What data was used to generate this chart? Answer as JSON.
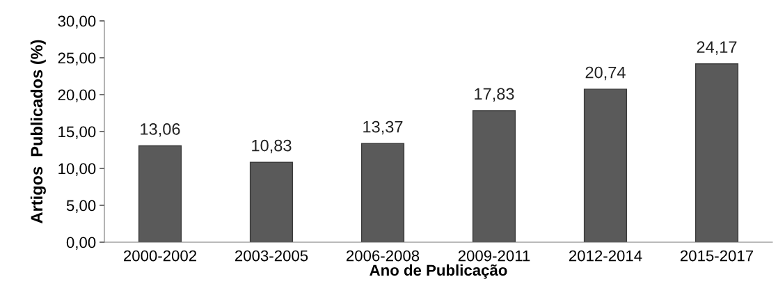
{
  "chart_data": {
    "type": "bar",
    "xlabel": "Ano de Publicação",
    "ylabel": "Artigos  Publicados (%)",
    "categories": [
      "2000-2002",
      "2003-2005",
      "2006-2008",
      "2009-2011",
      "2012-2014",
      "2015-2017"
    ],
    "values": [
      13.06,
      10.83,
      13.37,
      17.83,
      20.74,
      24.17
    ],
    "value_labels": [
      "13,06",
      "10,83",
      "13,37",
      "17,83",
      "20,74",
      "24,17"
    ],
    "color": "#5a5a5a",
    "ylim": [
      0,
      30
    ],
    "yticks": [
      {
        "value": 0,
        "label": "0,00"
      },
      {
        "value": 5,
        "label": "5,00"
      },
      {
        "value": 10,
        "label": "10,00"
      },
      {
        "value": 15,
        "label": "15,00"
      },
      {
        "value": 20,
        "label": "20,00"
      },
      {
        "value": 25,
        "label": "25,00"
      },
      {
        "value": 30,
        "label": "30,00"
      }
    ],
    "grid": false
  }
}
